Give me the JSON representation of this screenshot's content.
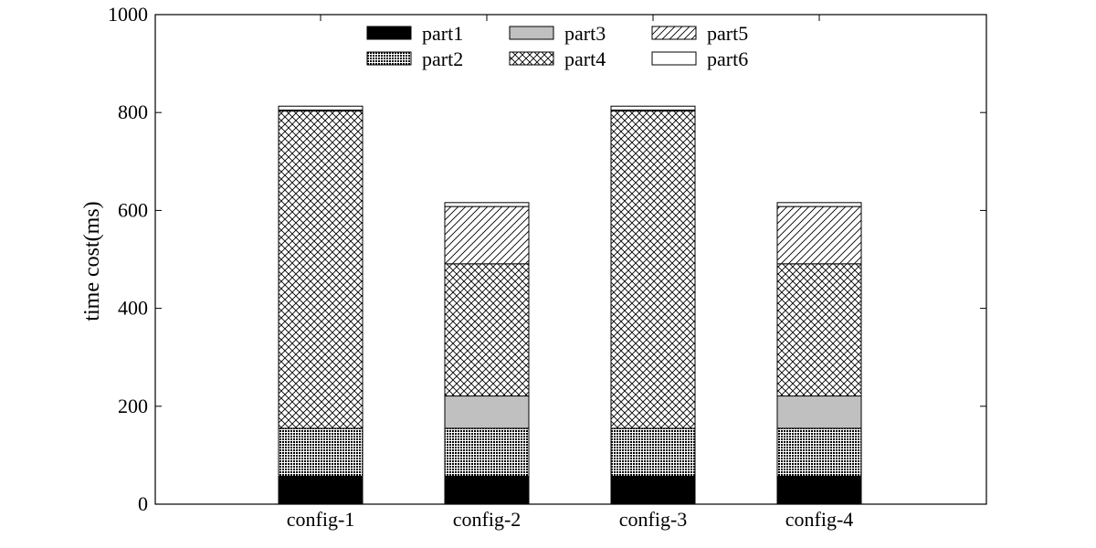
{
  "chart_data": {
    "type": "bar",
    "stacked": true,
    "title": "",
    "xlabel": "",
    "ylabel": "time cost(ms)",
    "ylim": [
      0,
      1000
    ],
    "yticks": [
      "0",
      "200",
      "400",
      "600",
      "800",
      "1000"
    ],
    "categories": [
      "config-1",
      "config-2",
      "config-3",
      "config-4"
    ],
    "legend_position": "top",
    "series": [
      {
        "name": "part1",
        "pattern": "solid-black",
        "values": [
          57,
          57,
          57,
          57
        ]
      },
      {
        "name": "part2",
        "pattern": "dense-dots",
        "values": [
          98,
          98,
          98,
          98
        ]
      },
      {
        "name": "part3",
        "pattern": "solid-gray",
        "values": [
          0,
          66,
          0,
          66
        ]
      },
      {
        "name": "part4",
        "pattern": "crosshatch",
        "values": [
          648,
          270,
          648,
          270
        ]
      },
      {
        "name": "part5",
        "pattern": "diagonal-lines",
        "values": [
          2,
          117,
          2,
          117
        ]
      },
      {
        "name": "part6",
        "pattern": "white",
        "values": [
          8,
          8,
          8,
          8
        ]
      }
    ],
    "colors": {
      "solid": "#000000",
      "gray": "#c0c0c0",
      "background": "#ffffff"
    },
    "grid": false
  }
}
